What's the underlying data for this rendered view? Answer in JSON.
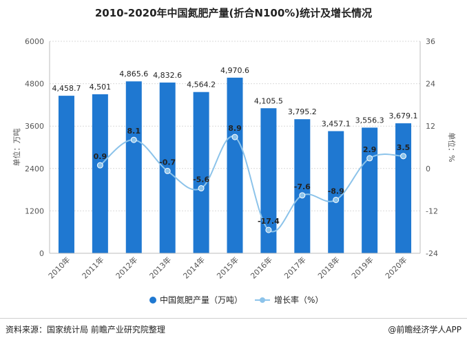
{
  "title": "2010-2020年中国氮肥产量(折合N100%)统计及增长情况",
  "footer": {
    "source": "资料来源：国家统计局 前瞻产业研究院整理",
    "brand": "@前瞻经济学人APP"
  },
  "colors": {
    "bar": "#1f78d1",
    "line": "#8cc3ea",
    "grid": "#d9d9d9",
    "axis": "#bdbdbd"
  },
  "chart_data": {
    "type": "bar",
    "title": "2010-2020年中国氮肥产量(折合N100%)统计及增长情况",
    "categories": [
      "2010年",
      "2011年",
      "2012年",
      "2013年",
      "2014年",
      "2015年",
      "2016年",
      "2017年",
      "2018年",
      "2019年",
      "2020年"
    ],
    "series": [
      {
        "name": "中国氮肥产量（万吨）",
        "kind": "bar",
        "axis": "left",
        "values": [
          4458.7,
          4501,
          4865.6,
          4832.6,
          4564.2,
          4970.6,
          4105.5,
          3795.2,
          3457.1,
          3556.3,
          3679.1
        ],
        "labels": [
          "4,458.7",
          "4,501",
          "4,865.6",
          "4,832.6",
          "4,564.2",
          "4,970.6",
          "4,105.5",
          "3,795.2",
          "3,457.1",
          "3,556.3",
          "3,679.1"
        ]
      },
      {
        "name": "增长率（%）",
        "kind": "line",
        "axis": "right",
        "values": [
          null,
          0.9,
          8.1,
          -0.7,
          -5.6,
          8.9,
          -17.4,
          -7.6,
          -8.9,
          2.9,
          3.5
        ],
        "labels": [
          "",
          "0.9",
          "8.1",
          "-0.7",
          "-5.6",
          "8.9",
          "-17.4",
          "-7.6",
          "-8.9",
          "2.9",
          "3.5"
        ]
      }
    ],
    "ylabel": "单位：万吨",
    "y2label": "单位：%",
    "ylim": [
      0,
      6000
    ],
    "yticks": [
      "0",
      "1200",
      "2400",
      "3600",
      "4800",
      "6000"
    ],
    "y2lim": [
      -24,
      36
    ],
    "y2ticks": [
      "-24",
      "-12",
      "0",
      "12",
      "24",
      "36"
    ],
    "grid": false,
    "legend": "bottom"
  }
}
